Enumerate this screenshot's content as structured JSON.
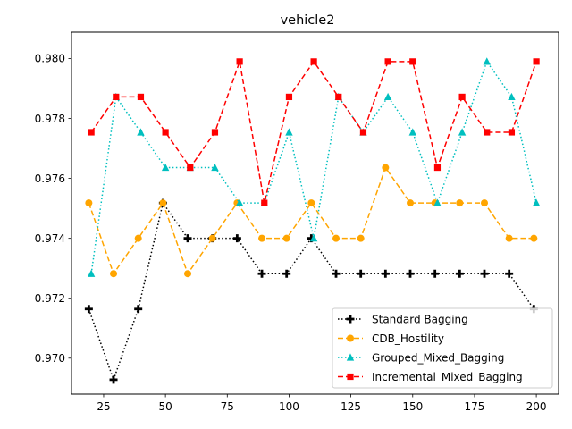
{
  "chart_data": {
    "type": "line",
    "title": "vehicle2",
    "xlabel": "",
    "ylabel": "",
    "xlim": [
      12,
      209
    ],
    "ylim": [
      0.9688,
      0.98088
    ],
    "xticks": [
      25,
      50,
      75,
      100,
      125,
      150,
      175,
      200
    ],
    "xtick_labels": [
      "25",
      "50",
      "75",
      "100",
      "125",
      "150",
      "175",
      "200"
    ],
    "yticks": [
      0.97,
      0.972,
      0.974,
      0.976,
      0.978,
      0.98
    ],
    "ytick_labels": [
      "0.970",
      "0.972",
      "0.974",
      "0.976",
      "0.978",
      "0.980"
    ],
    "legend_position": "lower-right",
    "grid": false,
    "series": [
      {
        "name": "Standard Bagging",
        "color": "#000000",
        "linestyle": "dotted",
        "marker": "plus",
        "x": [
          19,
          29,
          39,
          49,
          59,
          69,
          79,
          89,
          99,
          109,
          119,
          129,
          139,
          149,
          159,
          169,
          179,
          189,
          199
        ],
        "values": [
          0.97164,
          0.96928,
          0.97164,
          0.97518,
          0.974,
          0.974,
          0.974,
          0.97282,
          0.97282,
          0.974,
          0.97282,
          0.97282,
          0.97282,
          0.97282,
          0.97282,
          0.97282,
          0.97282,
          0.97282,
          0.97164
        ]
      },
      {
        "name": "CDB_Hostility",
        "color": "#ffa500",
        "linestyle": "dashed",
        "marker": "circle",
        "x": [
          19,
          29,
          39,
          49,
          59,
          69,
          79,
          89,
          99,
          109,
          119,
          129,
          139,
          149,
          159,
          169,
          179,
          189,
          199
        ],
        "values": [
          0.97518,
          0.97282,
          0.974,
          0.97518,
          0.97282,
          0.974,
          0.97518,
          0.974,
          0.974,
          0.97518,
          0.974,
          0.974,
          0.97636,
          0.97518,
          0.97518,
          0.97518,
          0.97518,
          0.974,
          0.974
        ]
      },
      {
        "name": "Grouped_Mixed_Bagging",
        "color": "#00bfbf",
        "linestyle": "dotted",
        "marker": "triangle",
        "x": [
          20,
          30,
          40,
          50,
          60,
          70,
          80,
          90,
          100,
          110,
          120,
          130,
          140,
          150,
          160,
          170,
          180,
          190,
          200
        ],
        "values": [
          0.97282,
          0.97872,
          0.97754,
          0.97636,
          0.97636,
          0.97636,
          0.97518,
          0.97518,
          0.97754,
          0.974,
          0.97872,
          0.97754,
          0.97872,
          0.97754,
          0.97518,
          0.97754,
          0.9799,
          0.97872,
          0.97518
        ]
      },
      {
        "name": "Incremental_Mixed_Bagging",
        "color": "#ff0000",
        "linestyle": "dashed",
        "marker": "square",
        "x": [
          20,
          30,
          40,
          50,
          60,
          70,
          80,
          90,
          100,
          110,
          120,
          130,
          140,
          150,
          160,
          170,
          180,
          190,
          200
        ],
        "values": [
          0.97754,
          0.97872,
          0.97872,
          0.97754,
          0.97636,
          0.97754,
          0.9799,
          0.97518,
          0.97872,
          0.9799,
          0.97872,
          0.97754,
          0.9799,
          0.9799,
          0.97636,
          0.97872,
          0.97754,
          0.97754,
          0.9799
        ]
      }
    ]
  }
}
